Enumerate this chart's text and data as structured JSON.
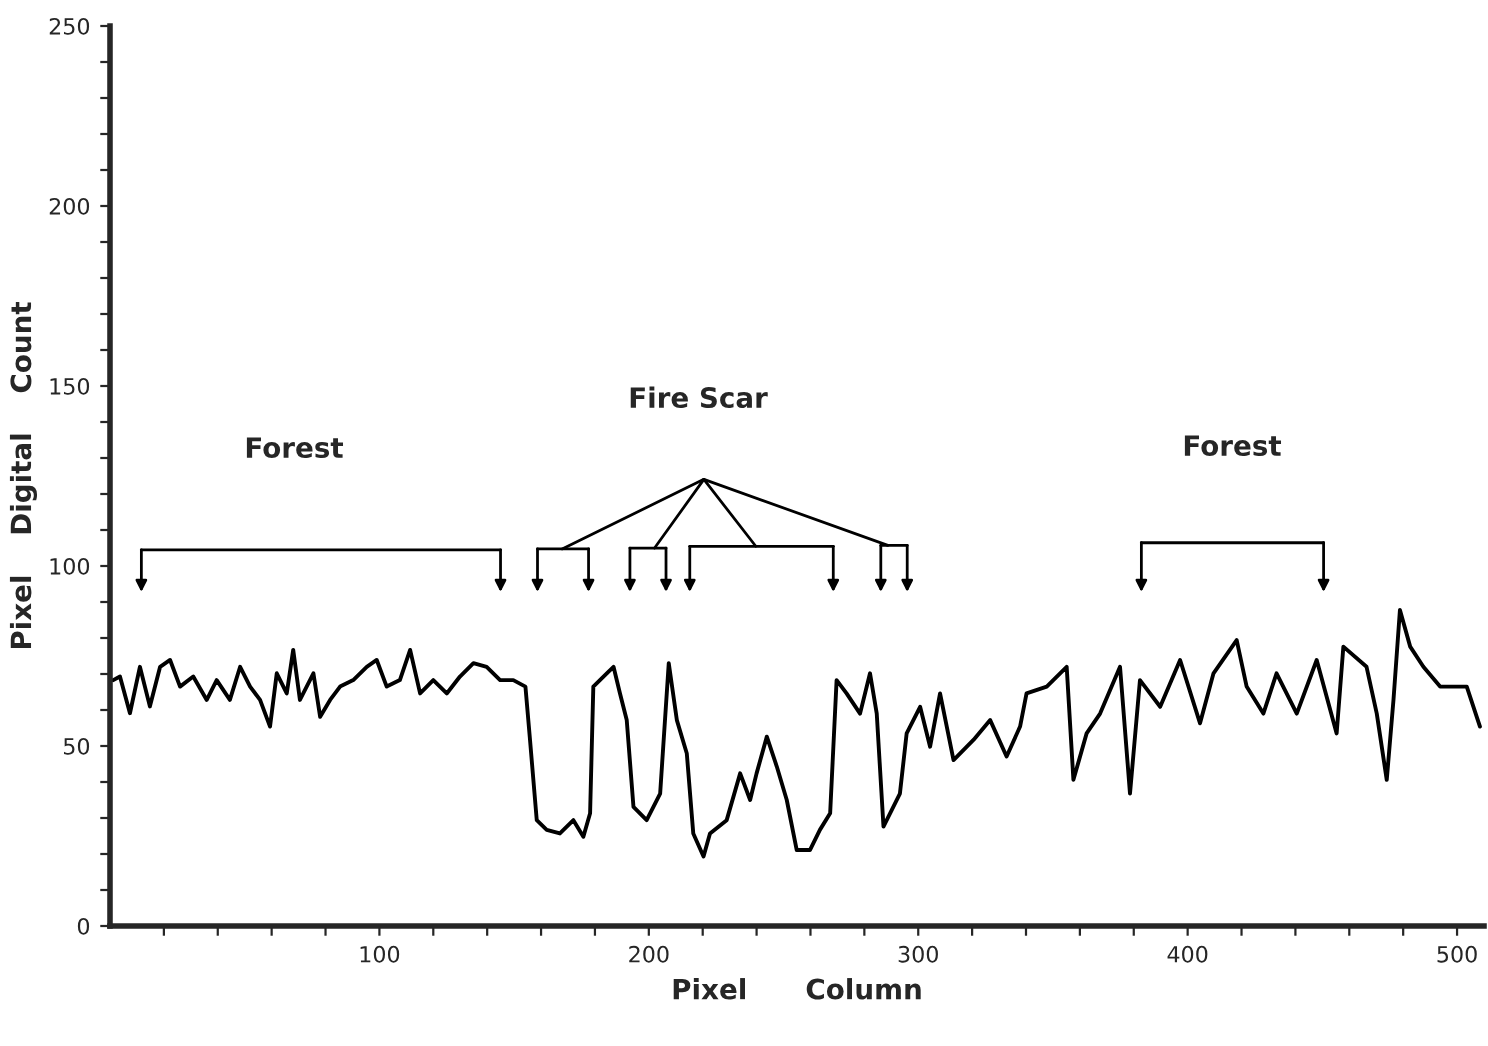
{
  "chart_data": {
    "type": "line",
    "xlabel": "Pixel      Column",
    "ylabel": "Pixel    Digital    Count",
    "annotations": [
      "Forest",
      "Fire Scar",
      "Forest"
    ],
    "x": [
      1.2,
      3.7,
      7.4,
      11.1,
      14.8,
      18.6,
      22.3,
      26,
      30.9,
      35.9,
      39.6,
      44.5,
      48.3,
      52,
      55.7,
      59.4,
      61.9,
      65.6,
      68,
      70.5,
      75.5,
      78,
      81.7,
      85.4,
      90.3,
      95.3,
      99,
      102.7,
      107.6,
      111.4,
      115.1,
      120,
      125,
      129.9,
      134.9,
      139.8,
      144.8,
      149.7,
      154.2,
      155.9,
      158.4,
      162.1,
      167,
      172,
      175.7,
      178.2,
      179.4,
      184.4,
      186.9,
      189.3,
      191.8,
      194.3,
      199.2,
      204.2,
      207.4,
      210.4,
      214.1,
      216.5,
      220.3,
      222.7,
      228.9,
      233.9,
      237.6,
      240,
      243.8,
      247.5,
      251.2,
      254.9,
      259.8,
      263.5,
      267.3,
      269.7,
      273.4,
      278.4,
      282.1,
      284.6,
      287.1,
      293.2,
      295.7,
      300.7,
      304.4,
      308.1,
      313.1,
      320.5,
      326.7,
      332.8,
      337.8,
      340.2,
      347.7,
      355.1,
      357.6,
      362.5,
      367.5,
      374.9,
      378.6,
      382.3,
      389.8,
      397.2,
      404.6,
      409.6,
      418.2,
      421.9,
      428.1,
      433,
      440.5,
      447.9,
      455.3,
      457.8,
      466.4,
      470.2,
      473.9,
      476.4,
      478.8,
      482.6,
      487.5,
      493.7,
      503.6,
      508.5
    ],
    "series": [
      {
        "color": "#000000",
        "values": [
          68.3,
          69.3,
          59.1,
          72,
          61,
          72,
          73.9,
          66.5,
          69.3,
          62.8,
          68.3,
          62.8,
          72,
          66.5,
          62.8,
          55.4,
          70.2,
          64.6,
          76.7,
          62.8,
          70.2,
          58.1,
          62.8,
          66.5,
          68.3,
          72,
          73.9,
          66.5,
          68.3,
          76.7,
          64.6,
          68.3,
          64.6,
          69.3,
          73,
          72,
          68.3,
          68.3,
          66.5,
          51.7,
          29.4,
          26.7,
          25.7,
          29.4,
          24.8,
          31.3,
          66.5,
          70.2,
          72,
          64.6,
          57.2,
          33.1,
          29.4,
          36.8,
          73,
          57.2,
          47.9,
          25.7,
          19.3,
          25.7,
          29.4,
          42.4,
          35,
          42.4,
          52.6,
          44.3,
          35,
          21.1,
          21.1,
          26.7,
          31.3,
          68.3,
          64.6,
          59,
          70.2,
          59,
          27.6,
          36.8,
          53.5,
          60.9,
          49.8,
          64.6,
          46.1,
          51.7,
          57.2,
          47.1,
          55.4,
          64.6,
          66.5,
          72,
          40.6,
          53.5,
          59,
          72,
          36.8,
          68.3,
          60.9,
          73.9,
          56.3,
          70.2,
          79.4,
          66.5,
          59,
          70.2,
          59,
          73.9,
          53.5,
          77.6,
          72,
          59,
          40.6,
          62.8,
          87.8,
          77.6,
          72,
          66.5,
          66.5,
          55.4
        ]
      }
    ],
    "xlim": [
      0,
      510
    ],
    "xticks": [
      {
        "value": 20,
        "label": null
      },
      {
        "value": 40,
        "label": null
      },
      {
        "value": 60,
        "label": null
      },
      {
        "value": 80,
        "label": null
      },
      100,
      {
        "value": 120,
        "label": null
      },
      {
        "value": 140,
        "label": null
      },
      {
        "value": 160,
        "label": null
      },
      {
        "value": 180,
        "label": null
      },
      200,
      {
        "value": 220,
        "label": null
      },
      {
        "value": 240,
        "label": null
      },
      {
        "value": 260,
        "label": null
      },
      {
        "value": 280,
        "label": null
      },
      300,
      {
        "value": 320,
        "label": null
      },
      {
        "value": 340,
        "label": null
      },
      {
        "value": 360,
        "label": null
      },
      {
        "value": 380,
        "label": null
      },
      400,
      {
        "value": 420,
        "label": null
      },
      {
        "value": 440,
        "label": null
      },
      {
        "value": 460,
        "label": null
      },
      {
        "value": 480,
        "label": null
      },
      500
    ],
    "ylim": [
      0,
      250
    ],
    "yticks": [
      0,
      {
        "value": 10,
        "label": null
      },
      {
        "value": 20,
        "label": null
      },
      {
        "value": 30,
        "label": null
      },
      {
        "value": 40,
        "label": null
      },
      50,
      {
        "value": 60,
        "label": null
      },
      {
        "value": 70,
        "label": null
      },
      {
        "value": 80,
        "label": null
      },
      {
        "value": 90,
        "label": null
      },
      100,
      {
        "value": 110,
        "label": null
      },
      {
        "value": 120,
        "label": null
      },
      {
        "value": 130,
        "label": null
      },
      {
        "value": 140,
        "label": null
      },
      150,
      {
        "value": 160,
        "label": null
      },
      {
        "value": 170,
        "label": null
      },
      {
        "value": 180,
        "label": null
      },
      {
        "value": 190,
        "label": null
      },
      200,
      {
        "value": 210,
        "label": null
      },
      {
        "value": 220,
        "label": null
      },
      {
        "value": 230,
        "label": null
      },
      {
        "value": 240,
        "label": null
      },
      250
    ],
    "grid": false,
    "legend": false,
    "line_style": "solid",
    "marker": "none"
  }
}
